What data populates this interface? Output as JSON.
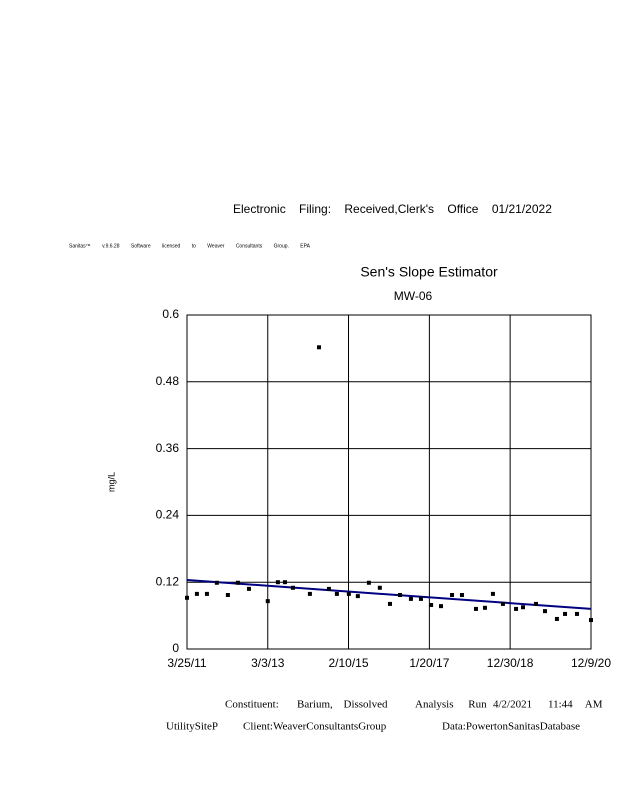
{
  "header": {
    "filing": "Electronic Filing: Received,Clerk's Office 01/21/2022",
    "license": "Sanitas™ v.9.6.28 Software licensed to Weaver Consultants Group. EPA"
  },
  "chart_data": {
    "type": "scatter",
    "title": "Sen's Slope Estimator",
    "subtitle": "MW-06",
    "y_label": "mg/L",
    "x": [
      "3/25/11",
      "6/20/11",
      "9/16/11",
      "12/12/11",
      "3/18/12",
      "6/14/12",
      "9/19/12",
      "3/3/13",
      "5/31/13",
      "8/1/13",
      "10/10/13",
      "3/8/14",
      "5/27/14",
      "8/22/14",
      "10/31/14",
      "2/13/15",
      "5/3/15",
      "8/8/15",
      "11/12/15",
      "2/9/16",
      "5/7/16",
      "8/11/16",
      "11/7/16",
      "2/4/17",
      "5/2/17",
      "8/7/17",
      "11/2/17",
      "3/5/18",
      "5/23/18",
      "8/1/18",
      "10/28/18",
      "2/20/19",
      "4/22/19",
      "8/14/19",
      "11/1/19",
      "2/14/20",
      "4/25/20",
      "8/8/20",
      "12/9/20"
    ],
    "values": [
      0.092,
      0.099,
      0.099,
      0.119,
      0.097,
      0.119,
      0.108,
      0.086,
      0.12,
      0.12,
      0.11,
      0.099,
      0.542,
      0.108,
      0.099,
      0.099,
      0.095,
      0.119,
      0.11,
      0.081,
      0.097,
      0.09,
      0.09,
      0.079,
      0.077,
      0.097,
      0.097,
      0.072,
      0.074,
      0.099,
      0.081,
      0.072,
      0.075,
      0.081,
      0.068,
      0.054,
      0.063,
      0.063,
      0.052
    ],
    "color": "#000000",
    "trend": {
      "x": [
        "3/25/11",
        "12/9/20"
      ],
      "values": [
        0.124,
        0.072
      ],
      "color": "#000080"
    },
    "xlim": [
      "3/25/11",
      "12/9/20"
    ],
    "xticks": [
      "3/25/11",
      "3/3/13",
      "2/10/15",
      "1/20/17",
      "12/30/18",
      "12/9/20"
    ],
    "ylim": [
      0,
      0.6
    ],
    "yticks": [
      0,
      0.12,
      0.24,
      0.36,
      0.48,
      0.6
    ],
    "grid": true
  },
  "footer": {
    "constituent_label": "Constituent:",
    "constituent": "Barium, Dissolved",
    "run_label": "Analysis Run",
    "run_date": "4/2/2021",
    "run_time": "11:44 AM",
    "site": "UtilitySiteP",
    "client": "Client:WeaverConsultantsGroup",
    "data": "Data:PowertonSanitasDatabase"
  }
}
